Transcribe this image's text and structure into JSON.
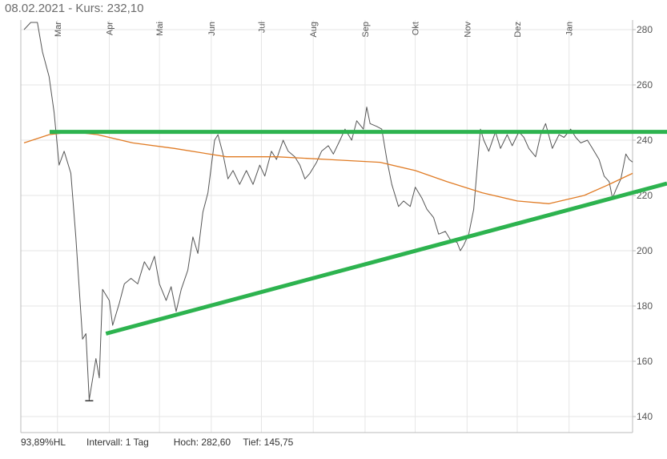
{
  "header": {
    "date": "08.02.2021",
    "separator": " - ",
    "price_label": "Kurs:",
    "price_value": "232,10"
  },
  "footer": {
    "hl_percent": "93,89%HL",
    "interval_label": "Intervall:",
    "interval_value": "1 Tag",
    "high_label": "Hoch:",
    "high_value": "282,60",
    "low_label": "Tief:",
    "low_value": "145,75"
  },
  "colors": {
    "price_line": "#555555",
    "moving_average": "#e07b24",
    "trendlines": "#2db34f",
    "grid": "#e6e6e6"
  },
  "chart_data": {
    "type": "line",
    "title": "",
    "xlabel": "",
    "ylabel": "",
    "x_range": [
      "2020-02-10",
      "2021-02-08"
    ],
    "ylim": [
      135,
      285
    ],
    "y_ticks": [
      140,
      160,
      180,
      200,
      220,
      240,
      260,
      280
    ],
    "x_ticks": [
      {
        "label": "Mar",
        "date": "2020-03-01"
      },
      {
        "label": "Apr",
        "date": "2020-04-01"
      },
      {
        "label": "Mai",
        "date": "2020-05-01"
      },
      {
        "label": "Jun",
        "date": "2020-06-01"
      },
      {
        "label": "Jul",
        "date": "2020-07-01"
      },
      {
        "label": "Aug",
        "date": "2020-08-01"
      },
      {
        "label": "Sep",
        "date": "2020-09-01"
      },
      {
        "label": "Okt",
        "date": "2020-10-01"
      },
      {
        "label": "Nov",
        "date": "2020-11-01"
      },
      {
        "label": "Dez",
        "date": "2020-12-01"
      },
      {
        "label": "Jan",
        "date": "2021-01-01"
      }
    ],
    "grid": true,
    "legend": "none",
    "series": [
      {
        "role": "price",
        "points": [
          [
            "2020-02-10",
            280
          ],
          [
            "2020-02-14",
            282.6
          ],
          [
            "2020-02-18",
            282.6
          ],
          [
            "2020-02-21",
            272
          ],
          [
            "2020-02-25",
            263
          ],
          [
            "2020-02-28",
            250
          ],
          [
            "2020-03-02",
            231
          ],
          [
            "2020-03-05",
            236
          ],
          [
            "2020-03-09",
            228
          ],
          [
            "2020-03-12",
            205
          ],
          [
            "2020-03-16",
            168
          ],
          [
            "2020-03-18",
            170
          ],
          [
            "2020-03-20",
            146
          ],
          [
            "2020-03-24",
            161
          ],
          [
            "2020-03-26",
            154
          ],
          [
            "2020-03-28",
            186
          ],
          [
            "2020-04-01",
            182
          ],
          [
            "2020-04-03",
            173
          ],
          [
            "2020-04-07",
            181
          ],
          [
            "2020-04-10",
            188
          ],
          [
            "2020-04-14",
            190
          ],
          [
            "2020-04-18",
            188
          ],
          [
            "2020-04-22",
            196
          ],
          [
            "2020-04-25",
            193
          ],
          [
            "2020-04-28",
            198
          ],
          [
            "2020-05-01",
            188
          ],
          [
            "2020-05-05",
            182
          ],
          [
            "2020-05-08",
            187
          ],
          [
            "2020-05-11",
            178
          ],
          [
            "2020-05-14",
            186
          ],
          [
            "2020-05-18",
            193
          ],
          [
            "2020-05-21",
            205
          ],
          [
            "2020-05-24",
            199
          ],
          [
            "2020-05-27",
            214
          ],
          [
            "2020-05-30",
            221
          ],
          [
            "2020-06-03",
            240
          ],
          [
            "2020-06-05",
            242
          ],
          [
            "2020-06-08",
            235
          ],
          [
            "2020-06-11",
            226
          ],
          [
            "2020-06-14",
            229
          ],
          [
            "2020-06-18",
            224
          ],
          [
            "2020-06-22",
            229
          ],
          [
            "2020-06-26",
            224
          ],
          [
            "2020-06-30",
            231
          ],
          [
            "2020-07-03",
            227
          ],
          [
            "2020-07-07",
            236
          ],
          [
            "2020-07-10",
            233
          ],
          [
            "2020-07-14",
            240
          ],
          [
            "2020-07-17",
            236
          ],
          [
            "2020-07-21",
            234
          ],
          [
            "2020-07-24",
            231
          ],
          [
            "2020-07-27",
            226
          ],
          [
            "2020-07-30",
            228
          ],
          [
            "2020-08-03",
            232
          ],
          [
            "2020-08-06",
            236
          ],
          [
            "2020-08-10",
            238
          ],
          [
            "2020-08-13",
            235
          ],
          [
            "2020-08-17",
            240
          ],
          [
            "2020-08-20",
            244
          ],
          [
            "2020-08-24",
            240
          ],
          [
            "2020-08-27",
            247
          ],
          [
            "2020-08-31",
            244
          ],
          [
            "2020-09-02",
            252
          ],
          [
            "2020-09-04",
            246
          ],
          [
            "2020-09-08",
            245
          ],
          [
            "2020-09-11",
            244
          ],
          [
            "2020-09-14",
            233
          ],
          [
            "2020-09-17",
            224
          ],
          [
            "2020-09-21",
            216
          ],
          [
            "2020-09-24",
            218
          ],
          [
            "2020-09-28",
            216
          ],
          [
            "2020-10-01",
            223
          ],
          [
            "2020-10-05",
            219
          ],
          [
            "2020-10-08",
            215
          ],
          [
            "2020-10-12",
            212
          ],
          [
            "2020-10-15",
            206
          ],
          [
            "2020-10-19",
            207
          ],
          [
            "2020-10-22",
            204
          ],
          [
            "2020-10-26",
            203
          ],
          [
            "2020-10-28",
            200
          ],
          [
            "2020-10-30",
            202
          ],
          [
            "2020-11-02",
            206
          ],
          [
            "2020-11-05",
            215
          ],
          [
            "2020-11-09",
            244
          ],
          [
            "2020-11-11",
            240
          ],
          [
            "2020-11-14",
            236
          ],
          [
            "2020-11-18",
            243
          ],
          [
            "2020-11-21",
            237
          ],
          [
            "2020-11-25",
            242
          ],
          [
            "2020-11-28",
            238
          ],
          [
            "2020-12-02",
            243
          ],
          [
            "2020-12-05",
            241
          ],
          [
            "2020-12-08",
            237
          ],
          [
            "2020-12-12",
            234
          ],
          [
            "2020-12-15",
            242
          ],
          [
            "2020-12-18",
            246
          ],
          [
            "2020-12-22",
            237
          ],
          [
            "2020-12-26",
            242
          ],
          [
            "2020-12-29",
            241
          ],
          [
            "2021-01-02",
            244
          ],
          [
            "2021-01-05",
            241
          ],
          [
            "2021-01-08",
            239
          ],
          [
            "2021-01-12",
            240
          ],
          [
            "2021-01-15",
            237
          ],
          [
            "2021-01-19",
            233
          ],
          [
            "2021-01-22",
            227
          ],
          [
            "2021-01-25",
            225
          ],
          [
            "2021-01-27",
            219
          ],
          [
            "2021-01-29",
            222
          ],
          [
            "2021-02-01",
            226
          ],
          [
            "2021-02-04",
            235
          ],
          [
            "2021-02-06",
            233
          ],
          [
            "2021-02-08",
            232.1
          ]
        ]
      },
      {
        "role": "moving-average",
        "points": [
          [
            "2020-02-10",
            239
          ],
          [
            "2020-02-25",
            242
          ],
          [
            "2020-03-10",
            243
          ],
          [
            "2020-03-25",
            242
          ],
          [
            "2020-04-15",
            239
          ],
          [
            "2020-05-10",
            237
          ],
          [
            "2020-06-10",
            234
          ],
          [
            "2020-07-10",
            234
          ],
          [
            "2020-08-10",
            233
          ],
          [
            "2020-09-10",
            232
          ],
          [
            "2020-10-01",
            229
          ],
          [
            "2020-10-20",
            225
          ],
          [
            "2020-11-10",
            221
          ],
          [
            "2020-12-01",
            218
          ],
          [
            "2020-12-20",
            217
          ],
          [
            "2021-01-10",
            220
          ],
          [
            "2021-01-25",
            224
          ],
          [
            "2021-02-08",
            228
          ]
        ]
      }
    ],
    "trendlines": [
      {
        "role": "resistance",
        "start": [
          "2020-03-02",
          243
        ],
        "end": [
          "2021-02-08",
          243
        ]
      },
      {
        "role": "support",
        "start": [
          "2020-03-30",
          170
        ],
        "end": [
          "2021-02-08",
          221
        ]
      }
    ],
    "annotations": [
      "93,89%HL"
    ]
  }
}
